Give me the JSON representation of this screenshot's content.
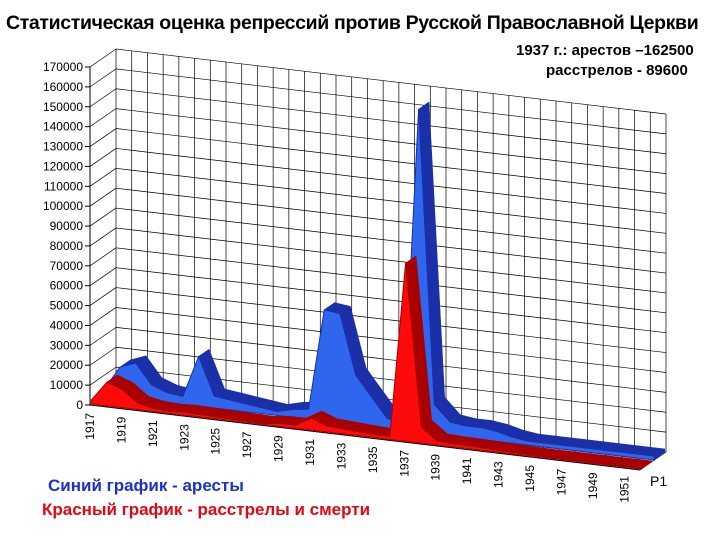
{
  "title": "Статистическая оценка репрессий против Русской Православной Церкви",
  "annotation": {
    "line1": "1937  г.: арестов –162500",
    "line2": "расстрелов - 89600"
  },
  "legend": {
    "blue": "Синий график - аресты",
    "red": "Красный график - расстрелы  и смерти"
  },
  "series_tag": "Р1",
  "colors": {
    "arrests": "#2f66ee",
    "arrests_dark": "#1b2fa8",
    "executions": "#ff0a0a",
    "executions_dark": "#a80000",
    "grid": "#000000"
  },
  "chart_data": {
    "type": "area",
    "view": "3d",
    "grid": true,
    "x": [
      1917,
      1918,
      1919,
      1920,
      1921,
      1922,
      1923,
      1924,
      1925,
      1926,
      1927,
      1928,
      1929,
      1930,
      1931,
      1932,
      1933,
      1934,
      1935,
      1936,
      1937,
      1938,
      1939,
      1940,
      1941,
      1942,
      1943,
      1944,
      1945,
      1946,
      1947,
      1948,
      1949,
      1950,
      1951,
      1952
    ],
    "x_tick_labels": [
      "1917",
      "1919",
      "1921",
      "1923",
      "1925",
      "1927",
      "1929",
      "1931",
      "1933",
      "1935",
      "1937",
      "1939",
      "1941",
      "1943",
      "1945",
      "1947",
      "1949",
      "1951"
    ],
    "ylim": [
      0,
      170000
    ],
    "y_ticks": [
      0,
      10000,
      20000,
      30000,
      40000,
      50000,
      60000,
      70000,
      80000,
      90000,
      100000,
      110000,
      120000,
      130000,
      140000,
      150000,
      160000,
      170000
    ],
    "series": [
      {
        "key": "arrests",
        "values": [
          3000,
          15000,
          18000,
          8000,
          5000,
          4000,
          25000,
          6000,
          5000,
          4000,
          3000,
          2000,
          4000,
          5000,
          56000,
          55000,
          25000,
          15000,
          5000,
          4000,
          162500,
          15000,
          7000,
          6000,
          6000,
          5000,
          3000,
          2000,
          2000,
          2000,
          2000,
          2000,
          2000,
          2000,
          2000,
          2000
        ]
      },
      {
        "key": "executions",
        "values": [
          2000,
          12000,
          9000,
          3000,
          1500,
          1000,
          1500,
          1200,
          1000,
          800,
          600,
          500,
          1500,
          1500,
          6000,
          3000,
          2500,
          2000,
          1500,
          1500,
          89600,
          8000,
          2000,
          1500,
          1500,
          1200,
          1000,
          800,
          600,
          500,
          500,
          500,
          500,
          500,
          500,
          500
        ]
      }
    ]
  }
}
